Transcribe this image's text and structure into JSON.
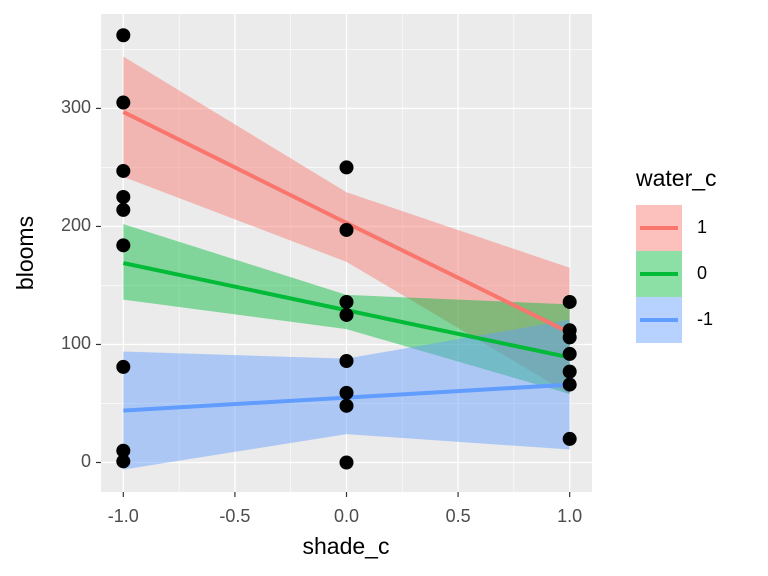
{
  "chart_data": {
    "type": "scatter",
    "x_label": "shade_c",
    "y_label": "blooms",
    "legend_title": "water_c",
    "legend_position": "right",
    "grid": true,
    "xlim": [
      -1.1,
      1.1
    ],
    "ylim": [
      -25,
      380
    ],
    "xticks": [
      {
        "value": -1,
        "label": "-1.0"
      },
      {
        "value": -0.5,
        "label": "-0.5"
      },
      {
        "value": 0,
        "label": "0.0"
      },
      {
        "value": 0.5,
        "label": "0.5"
      },
      {
        "value": 1,
        "label": "1.0"
      }
    ],
    "yticks": [
      0,
      100,
      200,
      300
    ],
    "x_minor_ticks": [
      -0.75,
      -0.25,
      0.25,
      0.75
    ],
    "y_minor_ticks": [
      50,
      150,
      250,
      350
    ],
    "points": {
      "color": "#000000",
      "x": [
        -1,
        -1,
        -1,
        -1,
        -1,
        -1,
        -1,
        -1,
        -1,
        0,
        0,
        0,
        0,
        0,
        0,
        0,
        0,
        1,
        1,
        1,
        1,
        1,
        1,
        1
      ],
      "y": [
        362,
        305,
        247,
        225,
        214,
        184,
        81,
        10,
        1,
        250,
        197,
        136,
        125,
        86,
        59,
        48,
        0,
        136,
        112,
        106,
        92,
        77,
        66,
        20
      ]
    },
    "series": [
      {
        "name": "1",
        "color": "#F8766D",
        "x": [
          -1,
          0,
          1
        ],
        "values": [
          297,
          203,
          110
        ],
        "upper": [
          344,
          229,
          165
        ],
        "lower": [
          242,
          170,
          58
        ]
      },
      {
        "name": "0",
        "color": "#00BA38",
        "x": [
          -1,
          0,
          1
        ],
        "values": [
          169,
          129,
          89
        ],
        "upper": [
          202,
          142,
          134
        ],
        "lower": [
          138,
          113,
          58
        ]
      },
      {
        "name": "-1",
        "color": "#619CFF",
        "x": [
          -1,
          0,
          1
        ],
        "values": [
          44,
          55,
          66
        ],
        "upper": [
          94,
          88,
          121
        ],
        "lower": [
          -6,
          24,
          11
        ]
      }
    ]
  }
}
